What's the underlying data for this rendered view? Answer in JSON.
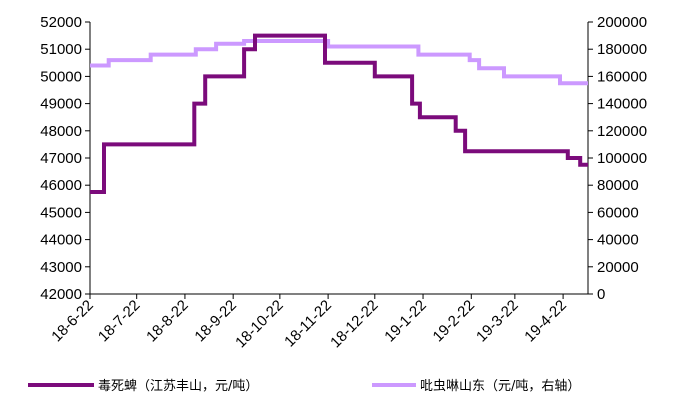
{
  "chart_data": {
    "type": "line",
    "title": "",
    "xlabel": "",
    "ylabel": "",
    "y2label": "",
    "grid": false,
    "legend_position": "bottom",
    "x_ticks": [
      "18-6-22",
      "18-7-22",
      "18-8-22",
      "18-9-22",
      "18-10-22",
      "18-11-22",
      "18-12-22",
      "19-1-22",
      "19-2-22",
      "19-3-22",
      "19-4-22"
    ],
    "y_left": {
      "min": 42000,
      "max": 52000,
      "ticks": [
        42000,
        43000,
        44000,
        45000,
        46000,
        47000,
        48000,
        49000,
        50000,
        51000,
        52000
      ]
    },
    "y_right": {
      "min": 0,
      "max": 200000,
      "ticks": [
        0,
        20000,
        40000,
        60000,
        80000,
        100000,
        120000,
        140000,
        160000,
        180000,
        200000
      ]
    },
    "series": [
      {
        "name": "毒死蜱（江苏丰山，元/吨）",
        "axis": "left",
        "color": "#7B0B7B",
        "stroke_style": "step",
        "points": [
          [
            "2018-06-22",
            45750
          ],
          [
            "2018-07-01",
            45750
          ],
          [
            "2018-07-01",
            47500
          ],
          [
            "2018-08-28",
            47500
          ],
          [
            "2018-08-28",
            49000
          ],
          [
            "2018-09-04",
            49000
          ],
          [
            "2018-09-04",
            50000
          ],
          [
            "2018-09-29",
            50000
          ],
          [
            "2018-09-29",
            51000
          ],
          [
            "2018-10-06",
            51000
          ],
          [
            "2018-10-06",
            51500
          ],
          [
            "2018-11-20",
            51500
          ],
          [
            "2018-11-20",
            50500
          ],
          [
            "2018-12-22",
            50500
          ],
          [
            "2018-12-22",
            50000
          ],
          [
            "2019-01-15",
            50000
          ],
          [
            "2019-01-15",
            49000
          ],
          [
            "2019-01-20",
            49000
          ],
          [
            "2019-01-20",
            48500
          ],
          [
            "2019-02-12",
            48500
          ],
          [
            "2019-02-12",
            48000
          ],
          [
            "2019-02-18",
            48000
          ],
          [
            "2019-02-18",
            47250
          ],
          [
            "2019-04-25",
            47250
          ],
          [
            "2019-04-25",
            47000
          ],
          [
            "2019-05-03",
            47000
          ],
          [
            "2019-05-03",
            46750
          ],
          [
            "2019-05-08",
            46750
          ]
        ]
      },
      {
        "name": "吡虫啉山东（元/吨，右轴）",
        "axis": "right",
        "color": "#CC99FF",
        "stroke_style": "step",
        "points": [
          [
            "2018-06-22",
            168000
          ],
          [
            "2018-07-04",
            168000
          ],
          [
            "2018-07-04",
            172000
          ],
          [
            "2018-07-31",
            172000
          ],
          [
            "2018-07-31",
            176000
          ],
          [
            "2018-08-29",
            176000
          ],
          [
            "2018-08-29",
            180000
          ],
          [
            "2018-09-11",
            180000
          ],
          [
            "2018-09-11",
            184000
          ],
          [
            "2018-09-29",
            184000
          ],
          [
            "2018-09-29",
            186000
          ],
          [
            "2018-11-22",
            186000
          ],
          [
            "2018-11-22",
            182000
          ],
          [
            "2019-01-19",
            182000
          ],
          [
            "2019-01-19",
            176000
          ],
          [
            "2019-02-21",
            176000
          ],
          [
            "2019-02-21",
            172000
          ],
          [
            "2019-02-27",
            172000
          ],
          [
            "2019-02-27",
            166000
          ],
          [
            "2019-03-15",
            166000
          ],
          [
            "2019-03-15",
            160000
          ],
          [
            "2019-04-20",
            160000
          ],
          [
            "2019-04-20",
            155000
          ],
          [
            "2019-05-08",
            155000
          ]
        ]
      }
    ],
    "legend": [
      {
        "label": "毒死蜱（江苏丰山，元/吨）",
        "color": "#7B0B7B"
      },
      {
        "label": "吡虫啉山东（元/吨，右轴）",
        "color": "#CC99FF"
      }
    ]
  }
}
